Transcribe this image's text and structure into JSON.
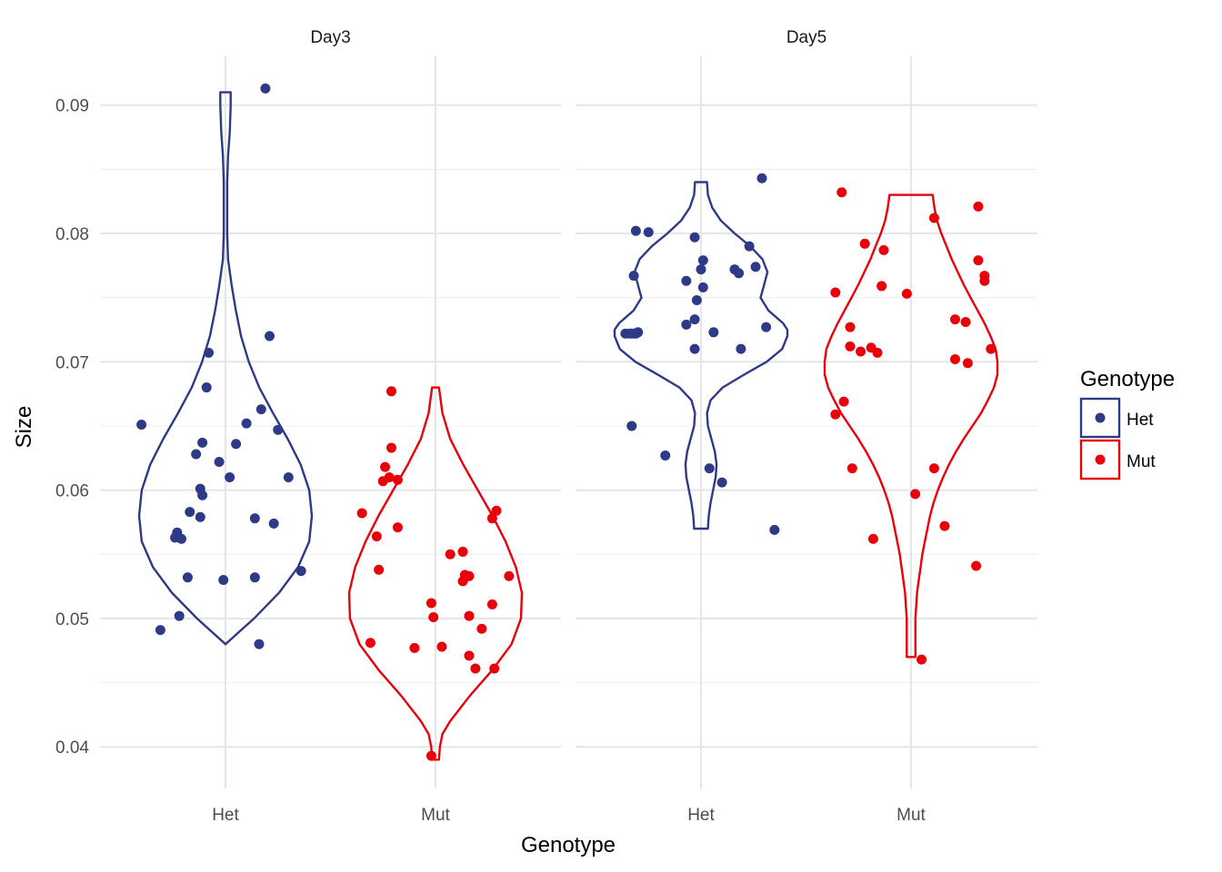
{
  "chart_data": {
    "type": "scatter",
    "subtype": "violin-with-jitter",
    "facets": [
      "Day3",
      "Day5"
    ],
    "categories": [
      "Het",
      "Mut"
    ],
    "xlabel": "Genotype",
    "ylabel": "Size",
    "ylim": [
      0.0365,
      0.0945
    ],
    "yticks": [
      0.04,
      0.05,
      0.06,
      0.07,
      0.08,
      0.09
    ],
    "ytick_labels": [
      "0.04",
      "0.05",
      "0.06",
      "0.07",
      "0.08",
      "0.09"
    ],
    "grid": true,
    "legend": {
      "title": "Genotype",
      "position": "right",
      "entries": [
        "Het",
        "Mut"
      ]
    },
    "colors": {
      "Het": "#2E3A87",
      "Mut": "#E8000B"
    },
    "series": [
      {
        "facet": "Day3",
        "group": "Het",
        "violin": {
          "y": [
            0.048,
            0.05,
            0.052,
            0.054,
            0.056,
            0.058,
            0.06,
            0.062,
            0.064,
            0.066,
            0.068,
            0.07,
            0.072,
            0.074,
            0.076,
            0.078,
            0.08,
            0.082,
            0.084,
            0.086,
            0.088,
            0.09,
            0.091
          ],
          "density": [
            0.0,
            0.33,
            0.62,
            0.84,
            0.97,
            1.0,
            0.97,
            0.87,
            0.72,
            0.55,
            0.39,
            0.27,
            0.18,
            0.12,
            0.07,
            0.03,
            0.02,
            0.02,
            0.02,
            0.03,
            0.05,
            0.06,
            0.06
          ]
        },
        "points": [
          {
            "x": -0.4,
            "y": 0.0651
          },
          {
            "x": -0.31,
            "y": 0.0491
          },
          {
            "x": -0.22,
            "y": 0.0502
          },
          {
            "x": -0.24,
            "y": 0.0563
          },
          {
            "x": -0.23,
            "y": 0.0567
          },
          {
            "x": -0.21,
            "y": 0.0562
          },
          {
            "x": -0.18,
            "y": 0.0532
          },
          {
            "x": -0.17,
            "y": 0.0583
          },
          {
            "x": -0.14,
            "y": 0.0628
          },
          {
            "x": -0.12,
            "y": 0.0601
          },
          {
            "x": -0.11,
            "y": 0.0596
          },
          {
            "x": -0.12,
            "y": 0.0579
          },
          {
            "x": -0.11,
            "y": 0.0637
          },
          {
            "x": -0.09,
            "y": 0.068
          },
          {
            "x": -0.08,
            "y": 0.0707
          },
          {
            "x": -0.03,
            "y": 0.0622
          },
          {
            "x": -0.01,
            "y": 0.053
          },
          {
            "x": 0.02,
            "y": 0.061
          },
          {
            "x": 0.05,
            "y": 0.0636
          },
          {
            "x": 0.1,
            "y": 0.0652
          },
          {
            "x": 0.14,
            "y": 0.0578
          },
          {
            "x": 0.14,
            "y": 0.0532
          },
          {
            "x": 0.16,
            "y": 0.048
          },
          {
            "x": 0.17,
            "y": 0.0663
          },
          {
            "x": 0.19,
            "y": 0.0913
          },
          {
            "x": 0.21,
            "y": 0.072
          },
          {
            "x": 0.23,
            "y": 0.0574
          },
          {
            "x": 0.25,
            "y": 0.0647
          },
          {
            "x": 0.3,
            "y": 0.061
          },
          {
            "x": 0.36,
            "y": 0.0537
          }
        ]
      },
      {
        "facet": "Day3",
        "group": "Mut",
        "violin": {
          "y": [
            0.039,
            0.04,
            0.041,
            0.042,
            0.044,
            0.046,
            0.048,
            0.05,
            0.052,
            0.054,
            0.056,
            0.058,
            0.06,
            0.062,
            0.064,
            0.066,
            0.068
          ],
          "density": [
            0.04,
            0.05,
            0.08,
            0.17,
            0.4,
            0.66,
            0.88,
            0.99,
            1.0,
            0.93,
            0.81,
            0.66,
            0.49,
            0.32,
            0.17,
            0.08,
            0.04
          ]
        },
        "points": [
          {
            "x": -0.35,
            "y": 0.0582
          },
          {
            "x": -0.31,
            "y": 0.0481
          },
          {
            "x": -0.28,
            "y": 0.0564
          },
          {
            "x": -0.27,
            "y": 0.0538
          },
          {
            "x": -0.25,
            "y": 0.0607
          },
          {
            "x": -0.24,
            "y": 0.0618
          },
          {
            "x": -0.22,
            "y": 0.061
          },
          {
            "x": -0.21,
            "y": 0.0677
          },
          {
            "x": -0.21,
            "y": 0.0633
          },
          {
            "x": -0.18,
            "y": 0.0608
          },
          {
            "x": -0.18,
            "y": 0.0571
          },
          {
            "x": -0.1,
            "y": 0.0477
          },
          {
            "x": -0.02,
            "y": 0.0512
          },
          {
            "x": -0.01,
            "y": 0.0501
          },
          {
            "x": -0.02,
            "y": 0.0393
          },
          {
            "x": 0.03,
            "y": 0.0478
          },
          {
            "x": 0.07,
            "y": 0.055
          },
          {
            "x": 0.13,
            "y": 0.0552
          },
          {
            "x": 0.13,
            "y": 0.0529
          },
          {
            "x": 0.14,
            "y": 0.0534
          },
          {
            "x": 0.16,
            "y": 0.0533
          },
          {
            "x": 0.16,
            "y": 0.0502
          },
          {
            "x": 0.16,
            "y": 0.0471
          },
          {
            "x": 0.19,
            "y": 0.0461
          },
          {
            "x": 0.22,
            "y": 0.0492
          },
          {
            "x": 0.27,
            "y": 0.0578
          },
          {
            "x": 0.27,
            "y": 0.0511
          },
          {
            "x": 0.29,
            "y": 0.0584
          },
          {
            "x": 0.35,
            "y": 0.0533
          },
          {
            "x": 0.28,
            "y": 0.0461
          }
        ]
      },
      {
        "facet": "Day5",
        "group": "Het",
        "violin": {
          "y": [
            0.057,
            0.058,
            0.059,
            0.06,
            0.061,
            0.062,
            0.063,
            0.064,
            0.065,
            0.066,
            0.067,
            0.068,
            0.069,
            0.07,
            0.071,
            0.072,
            0.0725,
            0.073,
            0.074,
            0.075,
            0.076,
            0.077,
            0.078,
            0.079,
            0.08,
            0.081,
            0.082,
            0.083,
            0.084
          ],
          "density": [
            0.08,
            0.09,
            0.11,
            0.14,
            0.17,
            0.18,
            0.16,
            0.12,
            0.08,
            0.07,
            0.11,
            0.25,
            0.5,
            0.76,
            0.94,
            1.0,
            1.0,
            0.95,
            0.78,
            0.69,
            0.73,
            0.77,
            0.71,
            0.57,
            0.39,
            0.23,
            0.13,
            0.08,
            0.07
          ]
        },
        "points": [
          {
            "x": -0.36,
            "y": 0.0722
          },
          {
            "x": -0.34,
            "y": 0.0722
          },
          {
            "x": -0.33,
            "y": 0.0722
          },
          {
            "x": -0.32,
            "y": 0.0722
          },
          {
            "x": -0.31,
            "y": 0.0722
          },
          {
            "x": -0.3,
            "y": 0.0723
          },
          {
            "x": -0.32,
            "y": 0.0767
          },
          {
            "x": -0.31,
            "y": 0.0802
          },
          {
            "x": -0.25,
            "y": 0.0801
          },
          {
            "x": -0.33,
            "y": 0.065
          },
          {
            "x": -0.17,
            "y": 0.0627
          },
          {
            "x": -0.07,
            "y": 0.0763
          },
          {
            "x": -0.07,
            "y": 0.0729
          },
          {
            "x": -0.03,
            "y": 0.0797
          },
          {
            "x": -0.03,
            "y": 0.0733
          },
          {
            "x": -0.03,
            "y": 0.071
          },
          {
            "x": -0.02,
            "y": 0.0748
          },
          {
            "x": 0.0,
            "y": 0.0772
          },
          {
            "x": 0.01,
            "y": 0.0758
          },
          {
            "x": 0.01,
            "y": 0.0779
          },
          {
            "x": 0.04,
            "y": 0.0617
          },
          {
            "x": 0.06,
            "y": 0.0723
          },
          {
            "x": 0.1,
            "y": 0.0606
          },
          {
            "x": 0.16,
            "y": 0.0772
          },
          {
            "x": 0.18,
            "y": 0.0769
          },
          {
            "x": 0.19,
            "y": 0.071
          },
          {
            "x": 0.23,
            "y": 0.079
          },
          {
            "x": 0.26,
            "y": 0.0774
          },
          {
            "x": 0.29,
            "y": 0.0843
          },
          {
            "x": 0.31,
            "y": 0.0727
          },
          {
            "x": 0.35,
            "y": 0.0569
          }
        ]
      },
      {
        "facet": "Day5",
        "group": "Mut",
        "violin": {
          "y": [
            0.047,
            0.048,
            0.049,
            0.05,
            0.051,
            0.052,
            0.053,
            0.054,
            0.055,
            0.056,
            0.057,
            0.058,
            0.059,
            0.06,
            0.061,
            0.062,
            0.063,
            0.064,
            0.065,
            0.066,
            0.067,
            0.068,
            0.069,
            0.07,
            0.071,
            0.072,
            0.073,
            0.074,
            0.075,
            0.076,
            0.077,
            0.078,
            0.079,
            0.08,
            0.081,
            0.082,
            0.083
          ],
          "density": [
            0.05,
            0.05,
            0.05,
            0.05,
            0.06,
            0.07,
            0.09,
            0.11,
            0.13,
            0.16,
            0.19,
            0.22,
            0.26,
            0.31,
            0.37,
            0.44,
            0.52,
            0.61,
            0.71,
            0.81,
            0.89,
            0.96,
            1.0,
            1.0,
            0.98,
            0.92,
            0.85,
            0.77,
            0.69,
            0.61,
            0.54,
            0.47,
            0.41,
            0.35,
            0.3,
            0.27,
            0.25
          ]
        },
        "points": [
          {
            "x": -0.36,
            "y": 0.0754
          },
          {
            "x": -0.36,
            "y": 0.0659
          },
          {
            "x": -0.32,
            "y": 0.0669
          },
          {
            "x": -0.33,
            "y": 0.0832
          },
          {
            "x": -0.29,
            "y": 0.0727
          },
          {
            "x": -0.29,
            "y": 0.0712
          },
          {
            "x": -0.28,
            "y": 0.0617
          },
          {
            "x": -0.24,
            "y": 0.0708
          },
          {
            "x": -0.22,
            "y": 0.0792
          },
          {
            "x": -0.19,
            "y": 0.0711
          },
          {
            "x": -0.18,
            "y": 0.0562
          },
          {
            "x": -0.16,
            "y": 0.0707
          },
          {
            "x": -0.14,
            "y": 0.0759
          },
          {
            "x": -0.13,
            "y": 0.0787
          },
          {
            "x": -0.02,
            "y": 0.0753
          },
          {
            "x": 0.02,
            "y": 0.0597
          },
          {
            "x": 0.05,
            "y": 0.0468
          },
          {
            "x": 0.11,
            "y": 0.0812
          },
          {
            "x": 0.11,
            "y": 0.0617
          },
          {
            "x": 0.16,
            "y": 0.0572
          },
          {
            "x": 0.21,
            "y": 0.0733
          },
          {
            "x": 0.21,
            "y": 0.0702
          },
          {
            "x": 0.26,
            "y": 0.0731
          },
          {
            "x": 0.27,
            "y": 0.0699
          },
          {
            "x": 0.32,
            "y": 0.0821
          },
          {
            "x": 0.32,
            "y": 0.0779
          },
          {
            "x": 0.35,
            "y": 0.0767
          },
          {
            "x": 0.35,
            "y": 0.0763
          },
          {
            "x": 0.38,
            "y": 0.071
          },
          {
            "x": 0.31,
            "y": 0.0541
          }
        ]
      }
    ]
  }
}
